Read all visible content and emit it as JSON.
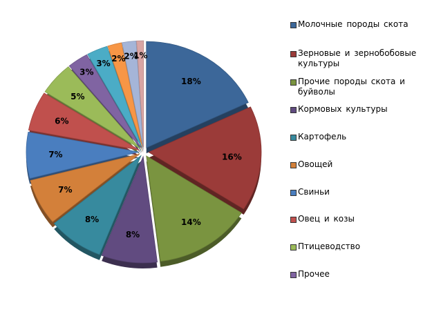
{
  "chart_data": {
    "type": "pie",
    "title": "",
    "series": [
      {
        "name": "Молочные породы скота",
        "label": "18%",
        "value": 18,
        "color": "#3C6799"
      },
      {
        "name": "Зерновые и зернобобовые культуры",
        "label": "16%",
        "value": 16,
        "color": "#9B3B39"
      },
      {
        "name": "Прочие породы скота и буйволы",
        "label": "14%",
        "value": 14,
        "color": "#7A9440"
      },
      {
        "name": "Кормовых культуры",
        "label": "8%",
        "value": 8,
        "color": "#614B80"
      },
      {
        "name": "Картофель",
        "label": "8%",
        "value": 8,
        "color": "#378A9E"
      },
      {
        "name": "Овощей",
        "label": "7%",
        "value": 7,
        "color": "#D3803A"
      },
      {
        "name": "Свиньи",
        "label": "7%",
        "value": 7,
        "color": "#4A7EBF"
      },
      {
        "name": "Овец и козы",
        "label": "6%",
        "value": 6,
        "color": "#C0504D"
      },
      {
        "name": "Птицеводство",
        "label": "5%",
        "value": 5,
        "color": "#9BBB59"
      },
      {
        "name": "Прочее",
        "label": "3%",
        "value": 3,
        "color": "#8064A2"
      },
      {
        "name": "",
        "label": "3%",
        "value": 3,
        "color": "#4BACC6"
      },
      {
        "name": "",
        "label": "2%",
        "value": 2,
        "color": "#F79646"
      },
      {
        "name": "",
        "label": "2%",
        "value": 2,
        "color": "#A5B5D8"
      },
      {
        "name": "",
        "label": "1%",
        "value": 1,
        "color": "#D9A5A4"
      }
    ],
    "legend_position": "right",
    "legend_items_shown": 10
  }
}
